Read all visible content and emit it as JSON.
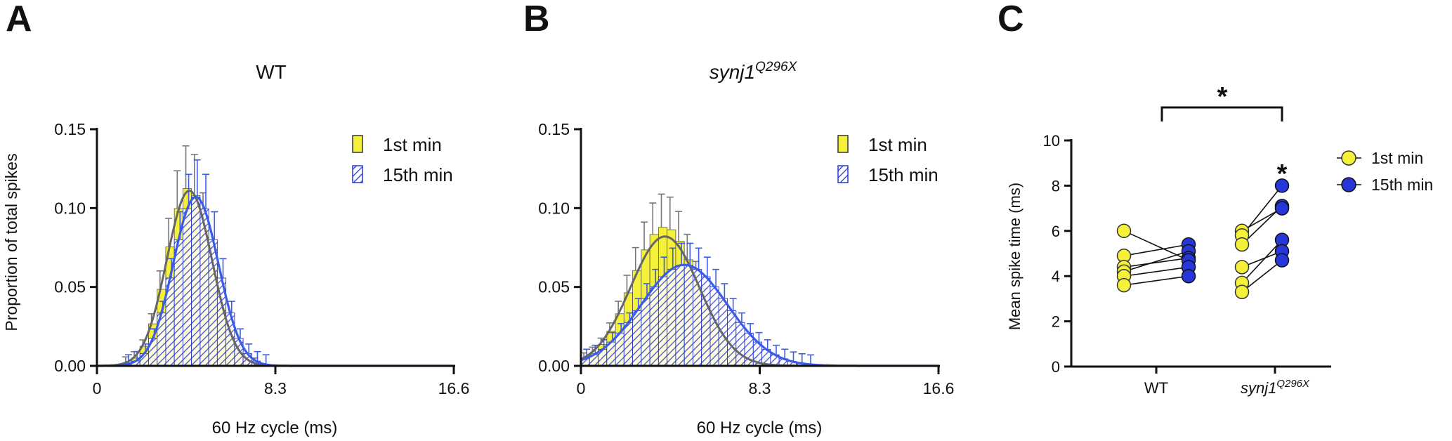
{
  "panels": {
    "A": {
      "letter": "A",
      "title": "WT"
    },
    "B": {
      "letter": "B",
      "title_main": "synj1",
      "title_sup": "Q296X"
    },
    "C": {
      "letter": "C"
    }
  },
  "legend_ab": {
    "first": "1st min",
    "fifteenth": "15th min"
  },
  "legend_c": {
    "first": "1st min",
    "fifteenth": "15th min"
  },
  "axes": {
    "hist_ylabel": "Proportion of total spikes",
    "hist_xlabel": "60 Hz cycle (ms)",
    "hist_xticks": [
      "0",
      "8.3",
      "16.6"
    ],
    "hist_yticks": [
      "0.00",
      "0.05",
      "0.10",
      "0.15"
    ],
    "c_ylabel": "Mean spike time (ms)",
    "c_yticks": [
      "0",
      "2",
      "4",
      "6",
      "8",
      "10"
    ],
    "c_cat_wt": "WT",
    "c_cat_mut_main": "synj1",
    "c_cat_mut_sup": "Q296X"
  },
  "colors": {
    "first": "#f5f03a",
    "fifteenth": "#2636d8",
    "fit_first": "#666666",
    "fit_fifteenth": "#3b5ce8"
  },
  "significance": {
    "bracket": "*",
    "point": "*"
  },
  "chart_data": [
    {
      "panel": "A",
      "type": "bar",
      "title": "WT",
      "xlabel": "60 Hz cycle (ms)",
      "ylabel": "Proportion of total spikes",
      "xlim": [
        0,
        16.6
      ],
      "ylim": [
        0,
        0.15
      ],
      "bin_width_ms": 0.4,
      "x_start": 0.2,
      "series": [
        {
          "name": "1st min",
          "mean": 4.3,
          "sd": 1.0,
          "peak": 0.113,
          "fit_mean": 4.3,
          "fit_sd": 1.05,
          "fit_peak": 0.111
        },
        {
          "name": "15th min",
          "mean": 4.6,
          "sd": 1.05,
          "peak": 0.107,
          "fit_mean": 4.6,
          "fit_sd": 1.05,
          "fit_peak": 0.107
        }
      ]
    },
    {
      "panel": "B",
      "type": "bar",
      "title": "synj1Q296X",
      "xlabel": "60 Hz cycle (ms)",
      "ylabel": "",
      "xlim": [
        0,
        16.6
      ],
      "ylim": [
        0,
        0.15
      ],
      "bin_width_ms": 0.4,
      "x_start": 0.2,
      "series": [
        {
          "name": "1st min",
          "mean": 3.9,
          "sd": 1.5,
          "peak": 0.088,
          "fit_mean": 3.9,
          "fit_sd": 1.6,
          "fit_peak": 0.082
        },
        {
          "name": "15th min",
          "mean": 4.8,
          "sd": 2.0,
          "peak": 0.064,
          "fit_mean": 4.8,
          "fit_sd": 2.0,
          "fit_peak": 0.064
        }
      ]
    },
    {
      "panel": "C",
      "type": "scatter",
      "ylabel": "Mean spike time (ms)",
      "ylim": [
        0,
        10
      ],
      "categories": [
        "WT",
        "synj1Q296X"
      ],
      "series": [
        {
          "name": "1st min",
          "WT": [
            6.0,
            4.9,
            4.4,
            4.2,
            4.0,
            3.6
          ],
          "synj1Q296X": [
            6.0,
            5.8,
            5.4,
            4.4,
            3.7,
            3.3
          ]
        },
        {
          "name": "15th min",
          "WT": [
            5.4,
            5.1,
            4.8,
            4.7,
            4.4,
            4.0
          ],
          "synj1Q296X": [
            8.0,
            7.1,
            7.0,
            5.6,
            5.1,
            4.7
          ]
        }
      ],
      "pairs": {
        "WT": [
          [
            4.9,
            5.4
          ],
          [
            4.4,
            4.8
          ],
          [
            4.0,
            4.4
          ],
          [
            4.2,
            5.1
          ],
          [
            3.6,
            4.0
          ],
          [
            6.0,
            4.7
          ]
        ],
        "synj1Q296X": [
          [
            6.0,
            7.0
          ],
          [
            5.8,
            8.0
          ],
          [
            5.4,
            7.1
          ],
          [
            4.4,
            5.1
          ],
          [
            3.7,
            5.6
          ],
          [
            3.3,
            4.7
          ]
        ]
      },
      "significance": [
        "* WT vs synj1Q296X",
        "* synj1Q296X 1st min vs 15th min"
      ]
    }
  ]
}
